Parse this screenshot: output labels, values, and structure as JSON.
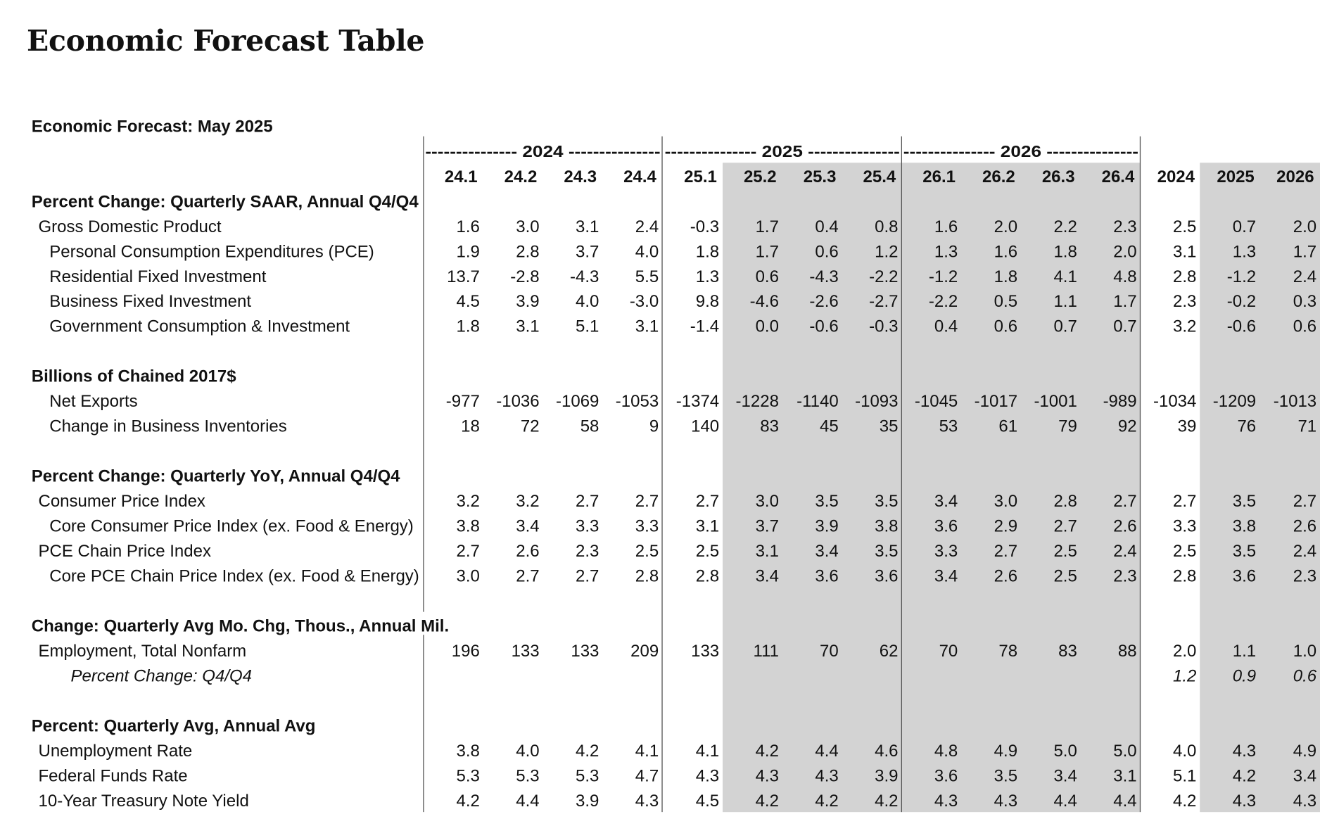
{
  "page_title": "Economic Forecast Table",
  "chart_data": {
    "type": "table",
    "title": "Economic Forecast: May 2025",
    "year_groups": [
      {
        "label": "--------------- 2024 ---------------",
        "year": "2024"
      },
      {
        "label": "--------------- 2025 ---------------",
        "year": "2025"
      },
      {
        "label": "--------------- 2026 ---------------",
        "year": "2026"
      }
    ],
    "columns": [
      "24.1",
      "24.2",
      "24.3",
      "24.4",
      "25.1",
      "25.2",
      "25.3",
      "25.4",
      "26.1",
      "26.2",
      "26.3",
      "26.4",
      "2024",
      "2025",
      "2026"
    ],
    "forecast_shading_color": "#d3d3d3",
    "sections": [
      {
        "heading": "Percent Change: Quarterly SAAR, Annual Q4/Q4",
        "rows": [
          {
            "label": "Gross Domestic Product",
            "indent": 1,
            "values": [
              "1.6",
              "3.0",
              "3.1",
              "2.4",
              "-0.3",
              "1.7",
              "0.4",
              "0.8",
              "1.6",
              "2.0",
              "2.2",
              "2.3",
              "2.5",
              "0.7",
              "2.0"
            ]
          },
          {
            "label": "Personal Consumption Expenditures (PCE)",
            "indent": 2,
            "values": [
              "1.9",
              "2.8",
              "3.7",
              "4.0",
              "1.8",
              "1.7",
              "0.6",
              "1.2",
              "1.3",
              "1.6",
              "1.8",
              "2.0",
              "3.1",
              "1.3",
              "1.7"
            ]
          },
          {
            "label": "Residential Fixed Investment",
            "indent": 2,
            "values": [
              "13.7",
              "-2.8",
              "-4.3",
              "5.5",
              "1.3",
              "0.6",
              "-4.3",
              "-2.2",
              "-1.2",
              "1.8",
              "4.1",
              "4.8",
              "2.8",
              "-1.2",
              "2.4"
            ]
          },
          {
            "label": "Business Fixed Investment",
            "indent": 2,
            "values": [
              "4.5",
              "3.9",
              "4.0",
              "-3.0",
              "9.8",
              "-4.6",
              "-2.6",
              "-2.7",
              "-2.2",
              "0.5",
              "1.1",
              "1.7",
              "2.3",
              "-0.2",
              "0.3"
            ]
          },
          {
            "label": "Government Consumption & Investment",
            "indent": 2,
            "values": [
              "1.8",
              "3.1",
              "5.1",
              "3.1",
              "-1.4",
              "0.0",
              "-0.6",
              "-0.3",
              "0.4",
              "0.6",
              "0.7",
              "0.7",
              "3.2",
              "-0.6",
              "0.6"
            ]
          }
        ]
      },
      {
        "heading": "Billions of Chained 2017$",
        "rows": [
          {
            "label": "Net Exports",
            "indent": 2,
            "values": [
              "-977",
              "-1036",
              "-1069",
              "-1053",
              "-1374",
              "-1228",
              "-1140",
              "-1093",
              "-1045",
              "-1017",
              "-1001",
              "-989",
              "-1034",
              "-1209",
              "-1013"
            ]
          },
          {
            "label": "Change in Business Inventories",
            "indent": 2,
            "values": [
              "18",
              "72",
              "58",
              "9",
              "140",
              "83",
              "45",
              "35",
              "53",
              "61",
              "79",
              "92",
              "39",
              "76",
              "71"
            ]
          }
        ]
      },
      {
        "heading": "Percent Change: Quarterly YoY, Annual Q4/Q4",
        "rows": [
          {
            "label": "Consumer Price Index",
            "indent": 1,
            "values": [
              "3.2",
              "3.2",
              "2.7",
              "2.7",
              "2.7",
              "3.0",
              "3.5",
              "3.5",
              "3.4",
              "3.0",
              "2.8",
              "2.7",
              "2.7",
              "3.5",
              "2.7"
            ]
          },
          {
            "label": "Core Consumer Price Index (ex. Food & Energy)",
            "indent": 2,
            "values": [
              "3.8",
              "3.4",
              "3.3",
              "3.3",
              "3.1",
              "3.7",
              "3.9",
              "3.8",
              "3.6",
              "2.9",
              "2.7",
              "2.6",
              "3.3",
              "3.8",
              "2.6"
            ]
          },
          {
            "label": "PCE Chain Price Index",
            "indent": 1,
            "values": [
              "2.7",
              "2.6",
              "2.3",
              "2.5",
              "2.5",
              "3.1",
              "3.4",
              "3.5",
              "3.3",
              "2.7",
              "2.5",
              "2.4",
              "2.5",
              "3.5",
              "2.4"
            ]
          },
          {
            "label": "Core PCE Chain Price Index (ex. Food & Energy)",
            "indent": 2,
            "values": [
              "3.0",
              "2.7",
              "2.7",
              "2.8",
              "2.8",
              "3.4",
              "3.6",
              "3.6",
              "3.4",
              "2.6",
              "2.5",
              "2.3",
              "2.8",
              "3.6",
              "2.3"
            ]
          }
        ]
      },
      {
        "heading": "Change: Quarterly Avg Mo. Chg, Thous., Annual Mil.",
        "rows": [
          {
            "label": "Employment, Total Nonfarm",
            "indent": 1,
            "values": [
              "196",
              "133",
              "133",
              "209",
              "133",
              "111",
              "70",
              "62",
              "70",
              "78",
              "83",
              "88",
              "2.0",
              "1.1",
              "1.0"
            ]
          },
          {
            "label": "Percent Change: Q4/Q4",
            "indent": 3,
            "italic": true,
            "values": [
              "",
              "",
              "",
              "",
              "",
              "",
              "",
              "",
              "",
              "",
              "",
              "",
              "1.2",
              "0.9",
              "0.6"
            ]
          }
        ]
      },
      {
        "heading": "Percent: Quarterly Avg, Annual Avg",
        "rows": [
          {
            "label": "Unemployment Rate",
            "indent": 1,
            "values": [
              "3.8",
              "4.0",
              "4.2",
              "4.1",
              "4.1",
              "4.2",
              "4.4",
              "4.6",
              "4.8",
              "4.9",
              "5.0",
              "5.0",
              "4.0",
              "4.3",
              "4.9"
            ]
          },
          {
            "label": "Federal Funds Rate",
            "indent": 1,
            "values": [
              "5.3",
              "5.3",
              "5.3",
              "4.7",
              "4.3",
              "4.3",
              "4.3",
              "3.9",
              "3.6",
              "3.5",
              "3.4",
              "3.1",
              "5.1",
              "4.2",
              "3.4"
            ]
          },
          {
            "label": "10-Year Treasury Note Yield",
            "indent": 1,
            "values": [
              "4.2",
              "4.4",
              "3.9",
              "4.3",
              "4.5",
              "4.2",
              "4.2",
              "4.2",
              "4.3",
              "4.3",
              "4.4",
              "4.4",
              "4.2",
              "4.3",
              "4.3"
            ]
          }
        ]
      }
    ]
  }
}
